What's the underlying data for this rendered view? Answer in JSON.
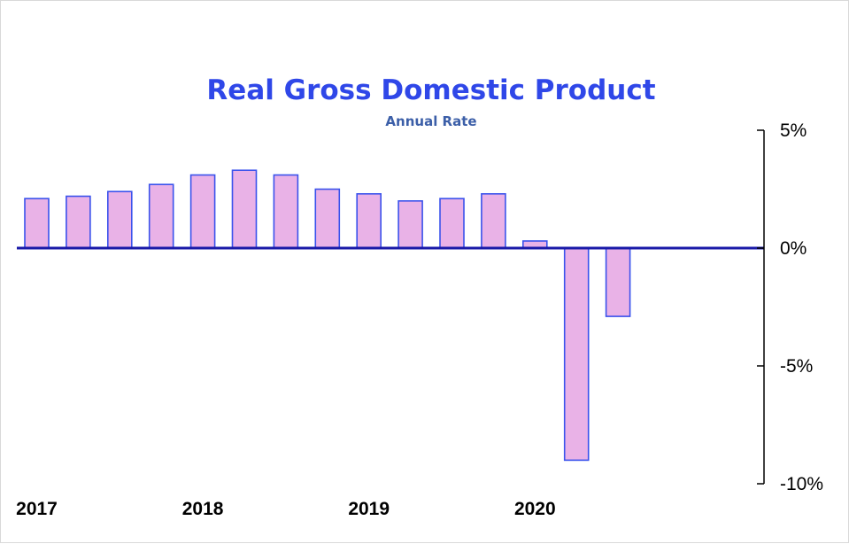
{
  "chart_data": {
    "type": "bar",
    "title": "Real Gross Domestic Product",
    "subtitle": "Annual Rate",
    "xlabel": "",
    "ylabel": "",
    "ylim": [
      -10,
      5
    ],
    "yticks": [
      5,
      0,
      -5,
      -10
    ],
    "ytick_labels": [
      "5%",
      "0%",
      "-5%",
      "-10%"
    ],
    "y_axis_side": "right",
    "x_tick_labels": [
      "2017",
      "2018",
      "2019",
      "2020"
    ],
    "x_tick_positions": [
      0,
      4,
      8,
      12
    ],
    "categories": [
      "2017 Q1",
      "2017 Q2",
      "2017 Q3",
      "2017 Q4",
      "2018 Q1",
      "2018 Q2",
      "2018 Q3",
      "2018 Q4",
      "2019 Q1",
      "2019 Q2",
      "2019 Q3",
      "2019 Q4",
      "2020 Q1",
      "2020 Q2",
      "2020 Q3"
    ],
    "values": [
      2.1,
      2.2,
      2.4,
      2.7,
      3.1,
      3.3,
      3.1,
      2.5,
      2.3,
      2.0,
      2.1,
      2.3,
      0.3,
      -9.0,
      -2.9
    ],
    "grid": false,
    "colors": {
      "bar_fill": "#e9b2e7",
      "bar_stroke": "#3a52ec",
      "zero_line": "#1a1aa8",
      "title": "#2f47e8",
      "subtitle": "#3c5fa8"
    }
  }
}
